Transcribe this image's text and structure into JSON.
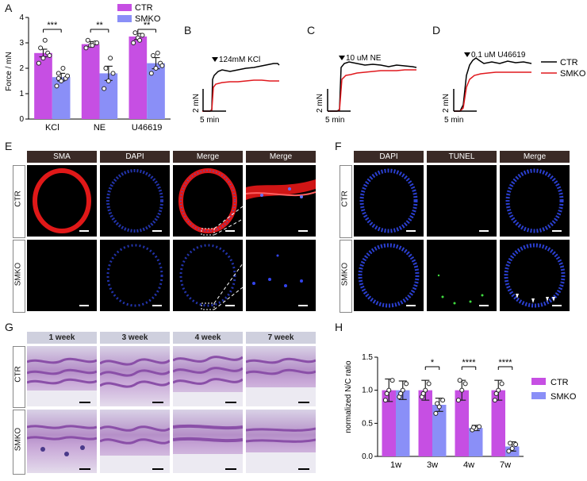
{
  "panels": {
    "A": "A",
    "B": "B",
    "C": "C",
    "D": "D",
    "E": "E",
    "F": "F",
    "G": "G",
    "H": "H"
  },
  "colors": {
    "ctr": "#c64fe3",
    "smko": "#8a8ff7",
    "trace_ctr": "#000000",
    "trace_smko": "#e0191e",
    "header_dark": "#3a2a26"
  },
  "panelA": {
    "legend": [
      "CTR",
      "SMKO"
    ],
    "ylabel": "Force / mN",
    "yticks": [
      "0",
      "1",
      "2",
      "3",
      "4"
    ],
    "sig": [
      "***",
      "**",
      "**"
    ]
  },
  "traces": {
    "B_label": "124mM KCl",
    "C_label": "10 uM NE",
    "D_label": "0.1 uM U46619",
    "yscale": "2 mN",
    "xscale": "5 min",
    "legend_ctr": "CTR",
    "legend_smko": "SMKO"
  },
  "panelE": {
    "headers": [
      "SMA",
      "DAPI",
      "Merge",
      "Merge"
    ],
    "rows": [
      "CTR",
      "SMKO"
    ]
  },
  "panelF": {
    "headers": [
      "DAPI",
      "TUNEL",
      "Merge"
    ],
    "rows": [
      "CTR",
      "SMKO"
    ]
  },
  "panelG": {
    "headers": [
      "1 week",
      "3 week",
      "4 week",
      "7 week"
    ],
    "rows": [
      "CTR",
      "SMKO"
    ]
  },
  "panelH": {
    "ylabel": "normalized N/C ratio",
    "legend": [
      "CTR",
      "SMKO"
    ],
    "yticks": [
      "0.0",
      "0.5",
      "1.0",
      "1.5"
    ],
    "sig": [
      "*",
      "****",
      "****"
    ]
  },
  "chart_data": [
    {
      "type": "bar",
      "panel": "A",
      "categories": [
        "KCl",
        "NE",
        "U46619"
      ],
      "series": [
        {
          "name": "CTR",
          "values": [
            2.6,
            2.95,
            3.25
          ],
          "errors": [
            0.15,
            0.1,
            0.12
          ]
        },
        {
          "name": "SMKO",
          "values": [
            1.65,
            1.8,
            2.2
          ],
          "errors": [
            0.15,
            0.28,
            0.22
          ]
        }
      ],
      "points": {
        "CTR": [
          [
            2.2,
            2.4,
            2.6,
            2.8,
            3.1,
            2.5
          ],
          [
            2.8,
            2.9,
            3.0,
            3.1,
            2.9,
            3.0
          ],
          [
            3.0,
            3.2,
            3.3,
            3.4,
            3.1
          ]
        ],
        "SMKO": [
          [
            1.3,
            1.5,
            1.6,
            1.8,
            2.0,
            1.7,
            1.6
          ],
          [
            1.2,
            1.5,
            1.8,
            2.0,
            2.4
          ],
          [
            1.8,
            2.0,
            2.2,
            2.5,
            2.6,
            2.1
          ]
        ]
      },
      "ylabel": "Force / mN",
      "ylim": [
        0,
        4
      ]
    },
    {
      "type": "bar",
      "panel": "H",
      "categories": [
        "1w",
        "3w",
        "4w",
        "7w"
      ],
      "series": [
        {
          "name": "CTR",
          "values": [
            1.0,
            1.0,
            1.0,
            1.0
          ],
          "errors": [
            0.17,
            0.15,
            0.15,
            0.15
          ]
        },
        {
          "name": "SMKO",
          "values": [
            1.0,
            0.78,
            0.43,
            0.15
          ],
          "errors": [
            0.14,
            0.1,
            0.04,
            0.07
          ]
        }
      ],
      "points": {
        "CTR": [
          [
            0.85,
            1.0,
            1.15,
            0.95
          ],
          [
            0.9,
            1.0,
            1.1,
            0.95
          ],
          [
            0.85,
            1.0,
            1.1,
            1.15
          ],
          [
            0.85,
            1.0,
            1.1,
            0.95
          ]
        ],
        "SMKO": [
          [
            0.9,
            1.0,
            1.1,
            0.95
          ],
          [
            0.65,
            0.75,
            0.85,
            0.8
          ],
          [
            0.4,
            0.42,
            0.45,
            0.44
          ],
          [
            0.08,
            0.12,
            0.18,
            0.2
          ]
        ]
      },
      "ylabel": "normalized N/C ratio",
      "ylim": [
        0,
        1.5
      ]
    }
  ]
}
